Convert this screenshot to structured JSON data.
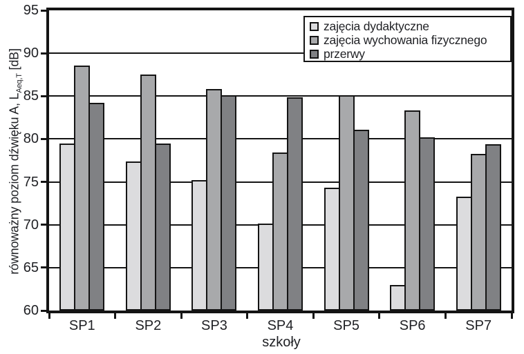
{
  "chart_data": {
    "type": "bar",
    "categories": [
      "SP1",
      "SP2",
      "SP3",
      "SP4",
      "SP5",
      "SP6",
      "SP7"
    ],
    "series": [
      {
        "name": "zajęcia dydaktyczne",
        "color": "#dcdcde",
        "values": [
          79.5,
          77.4,
          75.2,
          70.1,
          74.3,
          63.0,
          73.3
        ]
      },
      {
        "name": "zajęcia wychowania fizycznego",
        "color": "#a8a9ab",
        "values": [
          88.6,
          87.5,
          85.8,
          78.4,
          85.1,
          83.3,
          78.3
        ]
      },
      {
        "name": "przerwy",
        "color": "#808184",
        "values": [
          84.2,
          79.5,
          85.1,
          84.9,
          81.1,
          80.2,
          79.4
        ]
      }
    ],
    "ylabel_prefix": "równoważny poziom dźwięku A, L",
    "ylabel_sub": "Aeq,T",
    "ylabel_suffix": " [dB]",
    "xlabel": "szkoły",
    "ylim": [
      60,
      95
    ],
    "yticks": [
      95,
      90,
      85,
      80,
      75,
      70,
      65,
      60
    ],
    "gridline_values": [
      90,
      85,
      80,
      75,
      70,
      65
    ],
    "grid": true,
    "legend_position": "top-right",
    "frame_color": "#141414",
    "background_color": "#ffffff"
  }
}
